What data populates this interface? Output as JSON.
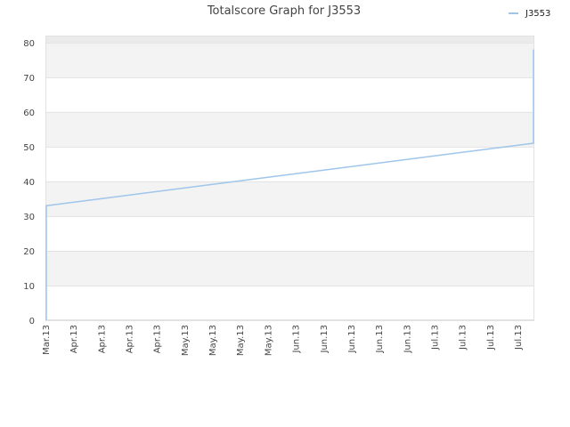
{
  "chart_data": {
    "type": "line",
    "title": "Totalscore Graph for J3553",
    "xlabel": "",
    "ylabel": "",
    "ylim": [
      0,
      82
    ],
    "yticks": [
      0,
      10,
      20,
      30,
      40,
      50,
      60,
      70,
      80
    ],
    "x_tick_labels": [
      "Mar.13",
      "Apr.13",
      "Apr.13",
      "Apr.13",
      "Apr.13",
      "May.13",
      "May.13",
      "May.13",
      "May.13",
      "Jun.13",
      "Jun.13",
      "Jun.13",
      "Jun.13",
      "Jun.13",
      "Jul.13",
      "Jul.13",
      "Jul.13",
      "Jul.13"
    ],
    "grid": true,
    "legend": "top-right",
    "series": [
      {
        "name": "J3553",
        "color": "#9fc5eb",
        "points": [
          {
            "x": "Mar.13",
            "y": 0
          },
          {
            "x": "Mar.13",
            "y": 33
          },
          {
            "x": "Jul.13",
            "y": 51
          },
          {
            "x": "Jul.13",
            "y": 78
          }
        ]
      }
    ]
  }
}
